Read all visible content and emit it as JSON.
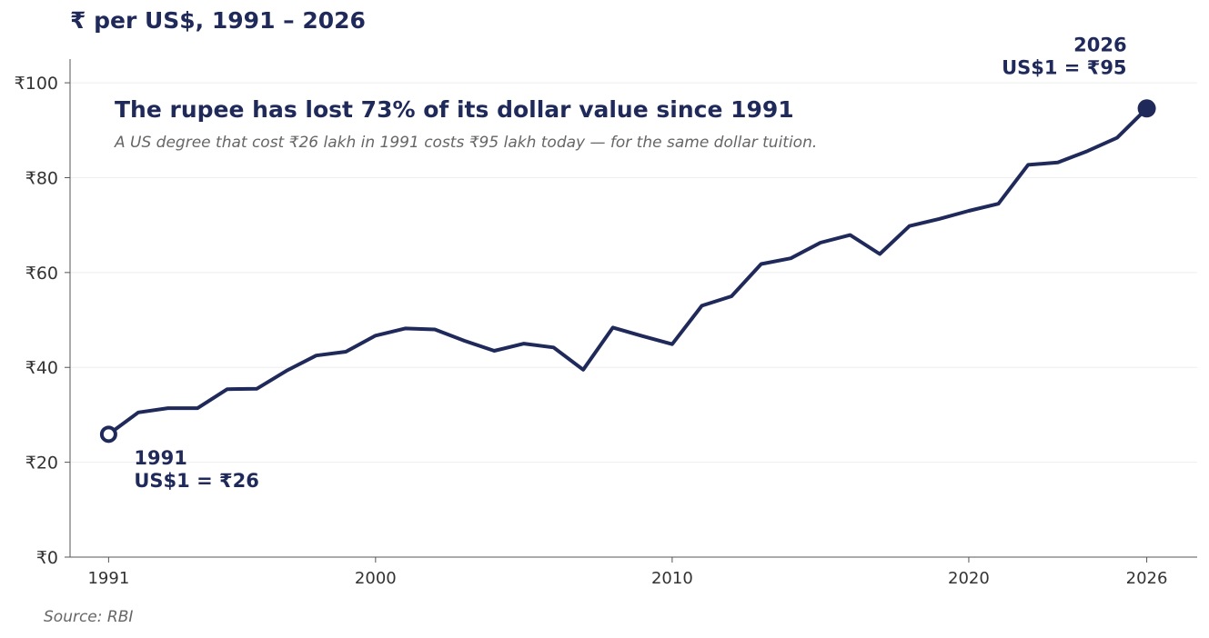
{
  "header": {
    "title": "₹ per US$,  1991 – 2026"
  },
  "source": "Source: RBI",
  "colors": {
    "line": "#1f2a5a",
    "axis": "#555555",
    "tick_text": "#333333",
    "grid": "#eeeeee",
    "subtitle": "#666666"
  },
  "chart_data": {
    "type": "line",
    "headline": "The rupee has lost 73% of its dollar value since 1991",
    "subtitle": "A US degree that cost ₹26 lakh in 1991 costs ₹95 lakh today — for the same dollar tuition.",
    "ylim": [
      0,
      105
    ],
    "xlim": [
      1989.7,
      2027.7
    ],
    "yticks": [
      0,
      20,
      40,
      60,
      80,
      100
    ],
    "ytick_labels": [
      "₹0",
      "₹20",
      "₹40",
      "₹60",
      "₹80",
      "₹100"
    ],
    "xticks": [
      1991,
      2000,
      2010,
      2020,
      2026
    ],
    "xtick_labels": [
      "1991",
      "2000",
      "2010",
      "2020",
      "2026"
    ],
    "grid": true,
    "series": [
      {
        "x": [
          1991,
          1992,
          1993,
          1994,
          1995,
          1996,
          1997,
          1998,
          1999,
          2000,
          2001,
          2002,
          2003,
          2004,
          2005,
          2006,
          2007,
          2008,
          2009,
          2010,
          2011,
          2012,
          2013,
          2014,
          2015,
          2016,
          2017,
          2018,
          2019,
          2020,
          2021,
          2022,
          2023,
          2024,
          2025,
          2026
        ],
        "values": [
          25.9,
          30.5,
          31.4,
          31.4,
          35.4,
          35.5,
          39.3,
          42.5,
          43.3,
          46.7,
          48.2,
          48.0,
          45.6,
          43.5,
          45.0,
          44.2,
          39.5,
          48.4,
          46.6,
          44.9,
          53.0,
          55.0,
          61.8,
          63.0,
          66.3,
          67.9,
          63.9,
          69.8,
          71.3,
          73.0,
          74.5,
          82.7,
          83.2,
          85.6,
          88.4,
          94.6
        ]
      }
    ],
    "annotations": [
      {
        "year": 1991,
        "value": 25.9,
        "line1": "1991",
        "line2": "US$1 = ₹26",
        "marker": "hollow"
      },
      {
        "year": 2026,
        "value": 94.6,
        "line1": "2026",
        "line2": "US$1 = ₹95",
        "marker": "filled"
      }
    ]
  }
}
